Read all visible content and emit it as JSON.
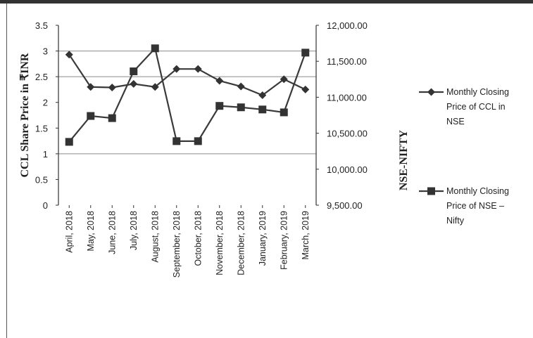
{
  "chart_data": {
    "type": "line",
    "categories": [
      "April, 2018",
      "May, 2018",
      "June, 2018",
      "July, 2018",
      "August, 2018",
      "September, 2018",
      "October, 2018",
      "November, 2018",
      "December, 2018",
      "January, 2019",
      "February, 2019",
      "March, 2019"
    ],
    "ylabel": "CCL Share Price in ₹INR",
    "y2label": "NSE-NIFTY",
    "ylim": [
      0,
      3.5
    ],
    "y2lim": [
      9500,
      12000
    ],
    "yticks": [
      "0",
      "0.5",
      "1",
      "1.5",
      "2",
      "2.5",
      "3",
      "3.5"
    ],
    "y2ticks": [
      "9,500.00",
      "10,000.00",
      "10,500.00",
      "11,000.00",
      "11,500.00",
      "12,000.00"
    ],
    "grid": "horizontal at 1, 2.5, 3 (left axis)",
    "legend_position": "right",
    "series": [
      {
        "name_lines": [
          "Monthly Closing",
          "Price of CCL in",
          "NSE"
        ],
        "axis": "left",
        "marker": "diamond",
        "values": [
          2.93,
          2.3,
          2.29,
          2.36,
          2.3,
          2.65,
          2.65,
          2.42,
          2.31,
          2.14,
          2.45,
          2.25
        ]
      },
      {
        "name_lines": [
          "Monthly Closing",
          "Price of NSE –",
          "Nifty"
        ],
        "axis": "right",
        "marker": "square",
        "values": [
          10380,
          10740,
          10710,
          11360,
          11680,
          10390,
          10390,
          10880,
          10860,
          10830,
          10790,
          11620
        ]
      }
    ]
  }
}
